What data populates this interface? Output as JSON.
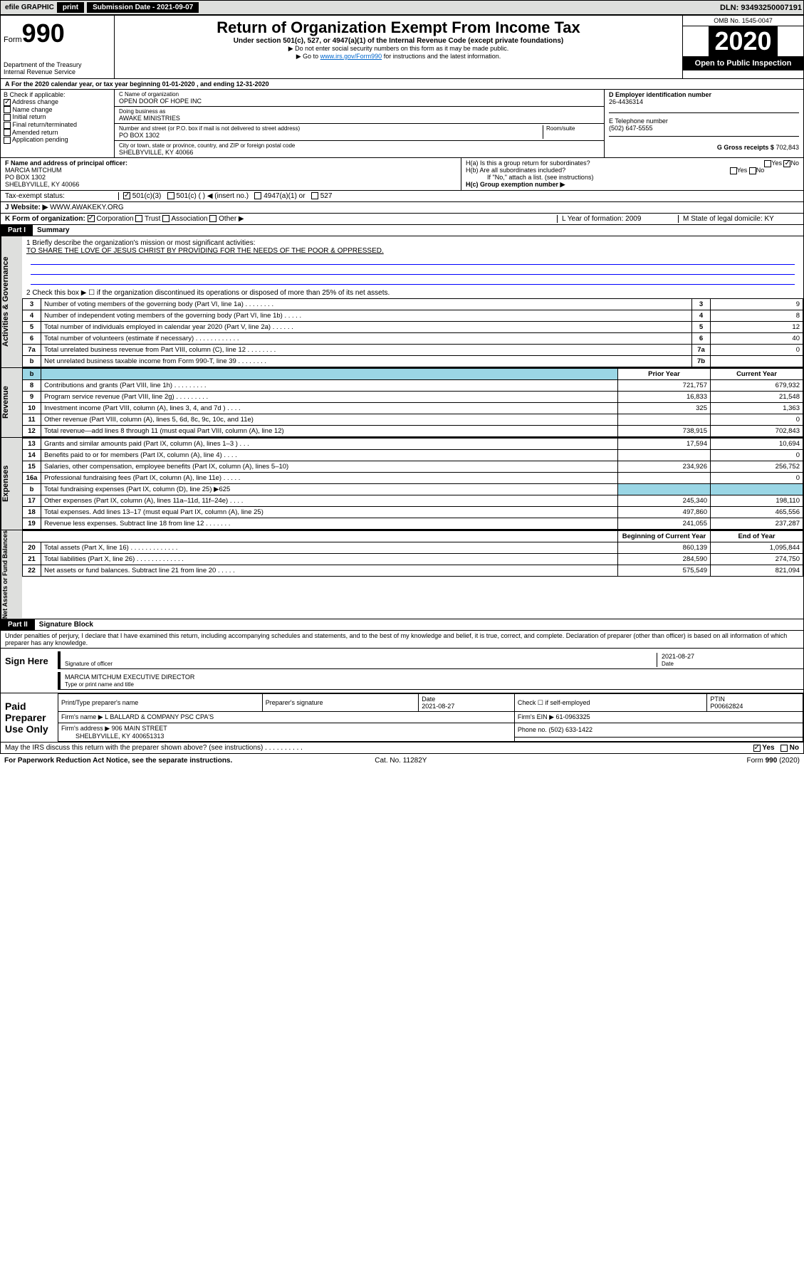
{
  "topbar": {
    "efile": "efile GRAPHIC",
    "print": "print",
    "sub_label": "Submission Date - 2021-09-07",
    "dln": "DLN: 93493250007191"
  },
  "header": {
    "form_word": "Form",
    "form_num": "990",
    "dept": "Department of the Treasury\nInternal Revenue Service",
    "title": "Return of Organization Exempt From Income Tax",
    "subtitle": "Under section 501(c), 527, or 4947(a)(1) of the Internal Revenue Code (except private foundations)",
    "note1": "▶ Do not enter social security numbers on this form as it may be made public.",
    "note2_pre": "▶ Go to ",
    "note2_link": "www.irs.gov/Form990",
    "note2_post": " for instructions and the latest information.",
    "omb": "OMB No. 1545-0047",
    "year": "2020",
    "open": "Open to Public Inspection"
  },
  "period": "For the 2020 calendar year, or tax year beginning 01-01-2020   , and ending 12-31-2020",
  "blockB": {
    "label": "B Check if applicable:",
    "opts": [
      "Address change",
      "Name change",
      "Initial return",
      "Final return/terminated",
      "Amended return",
      "Application pending"
    ]
  },
  "blockC": {
    "name_lbl": "C Name of organization",
    "name": "OPEN DOOR OF HOPE INC",
    "dba_lbl": "Doing business as",
    "dba": "AWAKE MINISTRIES",
    "addr_lbl": "Number and street (or P.O. box if mail is not delivered to street address)",
    "room_lbl": "Room/suite",
    "addr": "PO BOX 1302",
    "city_lbl": "City or town, state or province, country, and ZIP or foreign postal code",
    "city": "SHELBYVILLE, KY  40066"
  },
  "blockD": {
    "lbl": "D Employer identification number",
    "val": "26-4436314"
  },
  "blockE": {
    "lbl": "E Telephone number",
    "val": "(502) 647-5555"
  },
  "blockG": {
    "lbl": "G Gross receipts $",
    "val": "702,843"
  },
  "blockF": {
    "lbl": "F Name and address of principal officer:",
    "name": "MARCIA MITCHUM",
    "addr1": "PO BOX 1302",
    "addr2": "SHELBYVILLE, KY  40066"
  },
  "blockH": {
    "ha": "H(a)  Is this a group return for subordinates?",
    "hb": "H(b)  Are all subordinates included?",
    "hb_note": "If \"No,\" attach a list. (see instructions)",
    "hc": "H(c)  Group exemption number ▶"
  },
  "taxStatus": {
    "lbl": "Tax-exempt status:",
    "o1": "501(c)(3)",
    "o2": "501(c) (   ) ◀ (insert no.)",
    "o3": "4947(a)(1) or",
    "o4": "527"
  },
  "website": {
    "lbl": "J   Website: ▶",
    "val": "WWW.AWAKEKY.ORG"
  },
  "kline": {
    "lbl": "K Form of organization:",
    "opts": [
      "Corporation",
      "Trust",
      "Association",
      "Other ▶"
    ],
    "l": "L Year of formation: 2009",
    "m": "M State of legal domicile: KY"
  },
  "part1": {
    "bar": "Part I",
    "title": "Summary"
  },
  "mission": {
    "q": "1  Briefly describe the organization's mission or most significant activities:",
    "a": "TO SHARE THE LOVE OF JESUS CHRIST BY PROVIDING FOR THE NEEDS OF THE POOR & OPPRESSED."
  },
  "gov": {
    "l2": "2   Check this box ▶ ☐  if the organization discontinued its operations or disposed of more than 25% of its net assets.",
    "rows": [
      {
        "n": "3",
        "t": "Number of voting members of the governing body (Part VI, line 1a)  .   .   .   .   .   .   .   .",
        "b": "3",
        "v": "9"
      },
      {
        "n": "4",
        "t": "Number of independent voting members of the governing body (Part VI, line 1b)  .   .   .   .   .",
        "b": "4",
        "v": "8"
      },
      {
        "n": "5",
        "t": "Total number of individuals employed in calendar year 2020 (Part V, line 2a)  .   .   .   .   .   .",
        "b": "5",
        "v": "12"
      },
      {
        "n": "6",
        "t": "Total number of volunteers (estimate if necessary)  .   .   .   .   .   .   .   .   .   .   .   .",
        "b": "6",
        "v": "40"
      },
      {
        "n": "7a",
        "t": "Total unrelated business revenue from Part VIII, column (C), line 12  .   .   .   .   .   .   .   .",
        "b": "7a",
        "v": "0"
      },
      {
        "n": "b",
        "t": "Net unrelated business taxable income from Form 990-T, line 39   .   .   .   .   .   .   .   .",
        "b": "7b",
        "v": ""
      }
    ]
  },
  "revHdr": {
    "py": "Prior Year",
    "cy": "Current Year"
  },
  "revenue": [
    {
      "n": "8",
      "t": "Contributions and grants (Part VIII, line 1h)   .   .   .   .   .   .   .   .   .",
      "p": "721,757",
      "c": "679,932"
    },
    {
      "n": "9",
      "t": "Program service revenue (Part VIII, line 2g)   .   .   .   .   .   .   .   .   .",
      "p": "16,833",
      "c": "21,548"
    },
    {
      "n": "10",
      "t": "Investment income (Part VIII, column (A), lines 3, 4, and 7d )   .   .   .   .",
      "p": "325",
      "c": "1,363"
    },
    {
      "n": "11",
      "t": "Other revenue (Part VIII, column (A), lines 5, 6d, 8c, 9c, 10c, and 11e)",
      "p": "",
      "c": "0"
    },
    {
      "n": "12",
      "t": "Total revenue—add lines 8 through 11 (must equal Part VIII, column (A), line 12)",
      "p": "738,915",
      "c": "702,843"
    }
  ],
  "expenses": [
    {
      "n": "13",
      "t": "Grants and similar amounts paid (Part IX, column (A), lines 1–3 )   .   .   .",
      "p": "17,594",
      "c": "10,694"
    },
    {
      "n": "14",
      "t": "Benefits paid to or for members (Part IX, column (A), line 4)   .   .   .   .",
      "p": "",
      "c": "0"
    },
    {
      "n": "15",
      "t": "Salaries, other compensation, employee benefits (Part IX, column (A), lines 5–10)",
      "p": "234,926",
      "c": "256,752"
    },
    {
      "n": "16a",
      "t": "Professional fundraising fees (Part IX, column (A), line 11e)   .   .   .   .   .",
      "p": "",
      "c": "0"
    },
    {
      "n": "b",
      "t": "Total fundraising expenses (Part IX, column (D), line 25) ▶625",
      "p": "—",
      "c": "—"
    },
    {
      "n": "17",
      "t": "Other expenses (Part IX, column (A), lines 11a–11d, 11f–24e)   .   .   .   .",
      "p": "245,340",
      "c": "198,110"
    },
    {
      "n": "18",
      "t": "Total expenses. Add lines 13–17 (must equal Part IX, column (A), line 25)",
      "p": "497,860",
      "c": "465,556"
    },
    {
      "n": "19",
      "t": "Revenue less expenses. Subtract line 18 from line 12   .   .   .   .   .   .   .",
      "p": "241,055",
      "c": "237,287"
    }
  ],
  "naHdr": {
    "b": "Beginning of Current Year",
    "e": "End of Year"
  },
  "netassets": [
    {
      "n": "20",
      "t": "Total assets (Part X, line 16)   .   .   .   .   .   .   .   .   .   .   .   .   .",
      "p": "860,139",
      "c": "1,095,844"
    },
    {
      "n": "21",
      "t": "Total liabilities (Part X, line 26)   .   .   .   .   .   .   .   .   .   .   .   .   .",
      "p": "284,590",
      "c": "274,750"
    },
    {
      "n": "22",
      "t": "Net assets or fund balances. Subtract line 21 from line 20   .   .   .   .   .",
      "p": "575,549",
      "c": "821,094"
    }
  ],
  "part2": {
    "bar": "Part II",
    "title": "Signature Block"
  },
  "perjury": "Under penalties of perjury, I declare that I have examined this return, including accompanying schedules and statements, and to the best of my knowledge and belief, it is true, correct, and complete. Declaration of preparer (other than officer) is based on all information of which preparer has any knowledge.",
  "sign": {
    "here": "Sign Here",
    "sig_lbl": "Signature of officer",
    "date": "2021-08-27",
    "date_lbl": "Date",
    "name": "MARCIA MITCHUM  EXECUTIVE DIRECTOR",
    "name_lbl": "Type or print name and title"
  },
  "paid": {
    "title": "Paid Preparer Use Only",
    "h1": "Print/Type preparer's name",
    "h2": "Preparer's signature",
    "h3": "Date",
    "h3v": "2021-08-27",
    "h4": "Check ☐ if self-employed",
    "h5": "PTIN",
    "h5v": "P00662824",
    "firm_lbl": "Firm's name    ▶",
    "firm": "L BALLARD & COMPANY PSC CPA'S",
    "ein_lbl": "Firm's EIN ▶",
    "ein": "61-0963325",
    "addr_lbl": "Firm's address ▶",
    "addr": "906 MAIN STREET",
    "addr2": "SHELBYVILLE, KY  400651313",
    "phone_lbl": "Phone no.",
    "phone": "(502) 633-1422"
  },
  "discuss": "May the IRS discuss this return with the preparer shown above? (see instructions)   .   .   .   .   .   .   .   .   .   .",
  "footer": {
    "l": "For Paperwork Reduction Act Notice, see the separate instructions.",
    "m": "Cat. No. 11282Y",
    "r": "Form 990 (2020)"
  },
  "sideLabels": {
    "gov": "Activities & Governance",
    "rev": "Revenue",
    "exp": "Expenses",
    "na": "Net Assets or Fund Balances"
  },
  "yes": "Yes",
  "no": "No"
}
